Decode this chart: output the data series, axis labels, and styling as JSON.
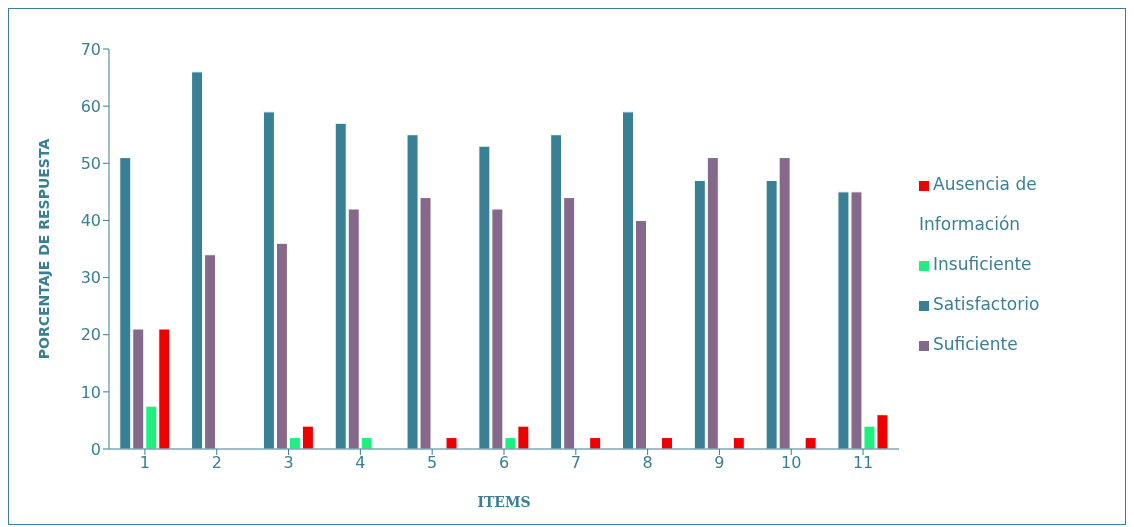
{
  "chart_data": {
    "type": "bar",
    "xlabel": "ITEMS",
    "ylabel": "PORCENTAJE DE RESPUESTA",
    "categories": [
      "1",
      "2",
      "3",
      "4",
      "5",
      "6",
      "7",
      "8",
      "9",
      "10",
      "11"
    ],
    "series": [
      {
        "name": "Satisfactorio",
        "color": "#3a8095",
        "values": [
          51,
          66,
          59,
          57,
          55,
          53,
          55,
          59,
          47,
          47,
          45
        ]
      },
      {
        "name": "Suficiente",
        "color": "#84698a",
        "values": [
          21,
          34,
          36,
          42,
          44,
          42,
          44,
          40,
          51,
          51,
          45
        ]
      },
      {
        "name": "Insuficiente",
        "color": "#1ef080",
        "values": [
          7.5,
          0,
          2,
          2,
          0,
          2,
          0,
          0,
          0,
          0,
          4
        ]
      },
      {
        "name": "Ausencia de Información",
        "color": "#ee0000",
        "values": [
          21,
          0,
          4,
          0,
          2,
          4,
          2,
          2,
          2,
          2,
          6
        ]
      }
    ],
    "ylim": [
      0,
      70
    ],
    "yticks": [
      0,
      10,
      20,
      30,
      40,
      50,
      60,
      70
    ],
    "grid": false,
    "legend": "right"
  }
}
